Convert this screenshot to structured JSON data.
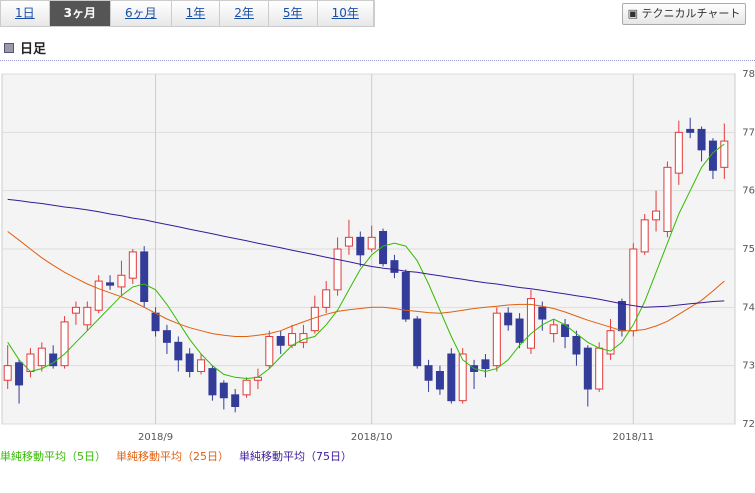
{
  "tabs": [
    "1日",
    "3ヶ月",
    "6ヶ月",
    "1年",
    "2年",
    "5年",
    "10年"
  ],
  "selected_tab": "3ヶ月",
  "button": "テクニカルチャート",
  "section_title": "日足",
  "chart_data": {
    "type": "candlestick",
    "categories": [
      null,
      null,
      null,
      null,
      null,
      null,
      null,
      null,
      null,
      null,
      null,
      null,
      null,
      "2018/9",
      null,
      null,
      null,
      null,
      null,
      null,
      null,
      null,
      null,
      null,
      null,
      null,
      null,
      null,
      null,
      null,
      null,
      null,
      "2018/10",
      null,
      null,
      null,
      null,
      null,
      null,
      null,
      null,
      null,
      null,
      null,
      null,
      null,
      null,
      null,
      null,
      null,
      null,
      null,
      null,
      null,
      null,
      "2018/11",
      null,
      null,
      null,
      null,
      null,
      null,
      null,
      null
    ],
    "open": [
      72.75,
      73.05,
      72.9,
      73.0,
      73.2,
      73.0,
      73.9,
      73.7,
      73.95,
      74.42,
      74.35,
      74.5,
      74.95,
      73.9,
      73.6,
      73.4,
      73.2,
      72.9,
      72.95,
      72.7,
      72.5,
      72.5,
      72.75,
      73.0,
      73.5,
      73.35,
      73.4,
      73.6,
      74.0,
      74.3,
      75.05,
      75.2,
      75.0,
      75.3,
      74.8,
      74.6,
      73.8,
      73.0,
      72.9,
      73.2,
      72.4,
      73.0,
      73.1,
      73.0,
      73.9,
      73.8,
      73.3,
      74.0,
      73.55,
      73.7,
      73.5,
      73.3,
      72.6,
      73.2,
      74.1,
      73.6,
      74.95,
      75.5,
      75.3,
      76.3,
      77.05,
      77.05,
      76.85,
      76.4
    ],
    "high": [
      73.35,
      73.1,
      73.3,
      73.4,
      73.35,
      73.85,
      74.1,
      74.1,
      74.55,
      74.55,
      74.8,
      75.0,
      75.05,
      74.0,
      73.7,
      73.5,
      73.3,
      73.2,
      73.0,
      72.75,
      72.6,
      72.8,
      72.95,
      73.6,
      73.6,
      73.7,
      73.7,
      74.2,
      74.45,
      75.2,
      75.5,
      75.3,
      75.4,
      75.35,
      74.9,
      74.65,
      73.85,
      73.1,
      73.0,
      73.3,
      73.3,
      73.1,
      73.2,
      74.0,
      74.0,
      73.9,
      74.3,
      74.1,
      73.8,
      73.8,
      73.6,
      73.35,
      73.4,
      73.8,
      74.15,
      75.1,
      75.6,
      76.0,
      76.5,
      77.2,
      77.25,
      77.1,
      76.9,
      77.15
    ],
    "low": [
      72.6,
      72.35,
      72.8,
      72.9,
      72.95,
      72.95,
      73.7,
      73.6,
      73.9,
      74.3,
      74.2,
      74.4,
      74.0,
      73.5,
      73.2,
      72.9,
      72.8,
      72.85,
      72.4,
      72.25,
      72.2,
      72.45,
      72.6,
      72.95,
      73.2,
      73.3,
      73.3,
      73.55,
      73.9,
      74.2,
      74.9,
      74.7,
      74.95,
      74.7,
      74.5,
      73.75,
      72.95,
      72.55,
      72.5,
      72.35,
      72.35,
      72.6,
      72.8,
      72.9,
      73.6,
      73.3,
      73.2,
      73.6,
      73.4,
      73.3,
      73.0,
      72.3,
      72.55,
      73.1,
      73.5,
      73.5,
      74.9,
      75.3,
      75.2,
      76.1,
      76.9,
      76.5,
      76.2,
      76.2
    ],
    "close": [
      73.0,
      72.67,
      73.2,
      73.3,
      73.0,
      73.75,
      74.0,
      74.0,
      74.45,
      74.38,
      74.55,
      74.95,
      74.1,
      73.6,
      73.4,
      73.1,
      72.9,
      73.1,
      72.5,
      72.45,
      72.3,
      72.75,
      72.8,
      73.5,
      73.35,
      73.55,
      73.55,
      74.0,
      74.3,
      75.0,
      75.2,
      74.9,
      75.2,
      74.75,
      74.6,
      73.8,
      73.0,
      72.75,
      72.6,
      72.4,
      73.2,
      72.9,
      72.95,
      73.9,
      73.7,
      73.4,
      74.15,
      73.8,
      73.7,
      73.5,
      73.2,
      72.6,
      73.3,
      73.6,
      73.6,
      75.0,
      75.5,
      75.65,
      76.4,
      77.0,
      77.0,
      76.7,
      76.35,
      76.85
    ],
    "up_color": "#e03a3a",
    "down_color": "#333d99",
    "series": [
      {
        "name": "単純移動平均（5日）",
        "color": "#33bb00",
        "values": [
          73.4,
          73.1,
          72.9,
          72.95,
          73.05,
          73.2,
          73.4,
          73.6,
          73.8,
          74.0,
          74.2,
          74.35,
          74.4,
          74.3,
          74.05,
          73.75,
          73.45,
          73.2,
          73.0,
          72.85,
          72.8,
          72.78,
          72.8,
          72.95,
          73.15,
          73.35,
          73.45,
          73.5,
          73.7,
          73.95,
          74.3,
          74.65,
          74.9,
          75.05,
          75.1,
          75.05,
          74.8,
          74.4,
          73.95,
          73.5,
          73.1,
          72.95,
          72.9,
          72.95,
          73.1,
          73.35,
          73.55,
          73.7,
          73.8,
          73.7,
          73.55,
          73.4,
          73.3,
          73.25,
          73.4,
          73.7,
          74.1,
          74.6,
          75.1,
          75.6,
          76.0,
          76.4,
          76.65,
          76.8
        ]
      },
      {
        "name": "単純移動平均（25日）",
        "color": "#e06010",
        "values": [
          75.3,
          75.15,
          75.0,
          74.85,
          74.72,
          74.6,
          74.5,
          74.4,
          74.32,
          74.25,
          74.18,
          74.1,
          74.0,
          73.9,
          73.8,
          73.72,
          73.65,
          73.6,
          73.55,
          73.52,
          73.5,
          73.5,
          73.52,
          73.55,
          73.6,
          73.68,
          73.75,
          73.82,
          73.88,
          73.93,
          73.96,
          73.98,
          74.0,
          74.0,
          73.98,
          73.95,
          73.93,
          73.91,
          73.9,
          73.92,
          73.95,
          73.98,
          74.0,
          74.02,
          74.04,
          74.05,
          74.05,
          74.02,
          73.98,
          73.92,
          73.85,
          73.78,
          73.72,
          73.66,
          73.6,
          73.6,
          73.62,
          73.68,
          73.76,
          73.88,
          74.0,
          74.12,
          74.28,
          74.45
        ]
      },
      {
        "name": "単純移動平均（75日）",
        "color": "#3a1a99",
        "values": [
          75.85,
          75.83,
          75.8,
          75.78,
          75.75,
          75.72,
          75.7,
          75.67,
          75.64,
          75.6,
          75.57,
          75.53,
          75.5,
          75.46,
          75.42,
          75.38,
          75.34,
          75.3,
          75.26,
          75.22,
          75.18,
          75.14,
          75.1,
          75.06,
          75.02,
          74.98,
          74.94,
          74.9,
          74.86,
          74.82,
          74.78,
          74.74,
          74.7,
          74.67,
          74.65,
          74.62,
          74.6,
          74.57,
          74.54,
          74.51,
          74.48,
          74.45,
          74.42,
          74.4,
          74.37,
          74.34,
          74.32,
          74.29,
          74.26,
          74.23,
          74.2,
          74.17,
          74.14,
          74.1,
          74.06,
          74.03,
          74.0,
          74.01,
          74.02,
          74.04,
          74.06,
          74.08,
          74.1,
          74.11
        ]
      }
    ],
    "ylim": [
      72,
      78
    ],
    "yticks": [
      72,
      73,
      74,
      75,
      76,
      77,
      78
    ],
    "grid": true
  }
}
